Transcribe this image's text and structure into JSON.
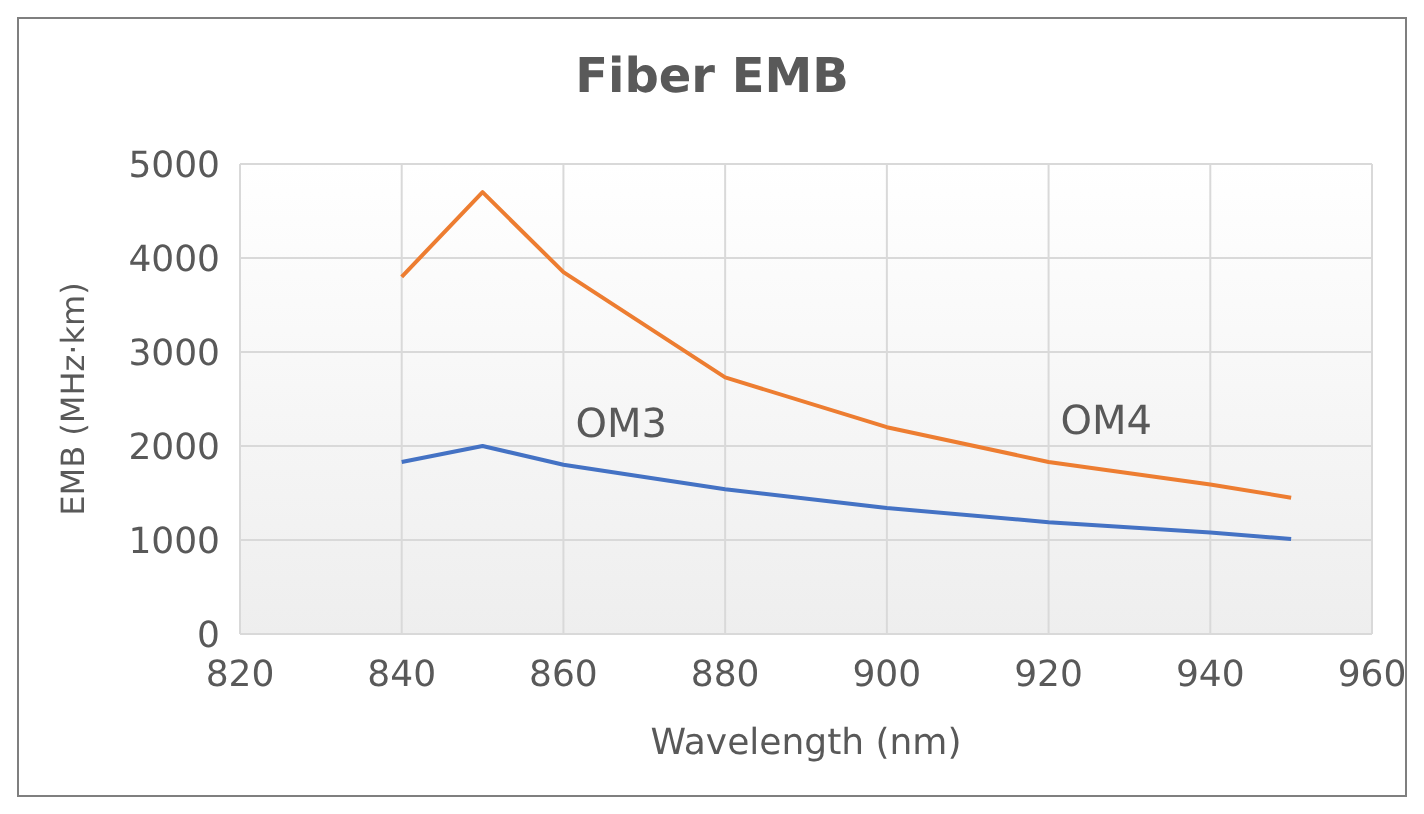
{
  "chart_data": {
    "type": "line",
    "title": "Fiber EMB",
    "xlabel": "Wavelength (nm)",
    "ylabel": "EMB (MHz·km)",
    "x": [
      840,
      850,
      860,
      880,
      900,
      920,
      940,
      950
    ],
    "series": [
      {
        "name": "OM3",
        "color": "#4472c4",
        "values": [
          1830,
          2000,
          1800,
          1540,
          1340,
          1190,
          1080,
          1010
        ]
      },
      {
        "name": "OM4",
        "color": "#ed7d31",
        "values": [
          3800,
          4700,
          3850,
          2730,
          2200,
          1830,
          1590,
          1450
        ]
      }
    ],
    "xlim": [
      820,
      960
    ],
    "xticks": [
      820,
      840,
      860,
      880,
      900,
      920,
      940,
      960
    ],
    "ylim": [
      0,
      5000
    ],
    "yticks": [
      0,
      1000,
      2000,
      3000,
      4000,
      5000
    ],
    "grid": true,
    "marker": "none",
    "line_style": "solid"
  }
}
